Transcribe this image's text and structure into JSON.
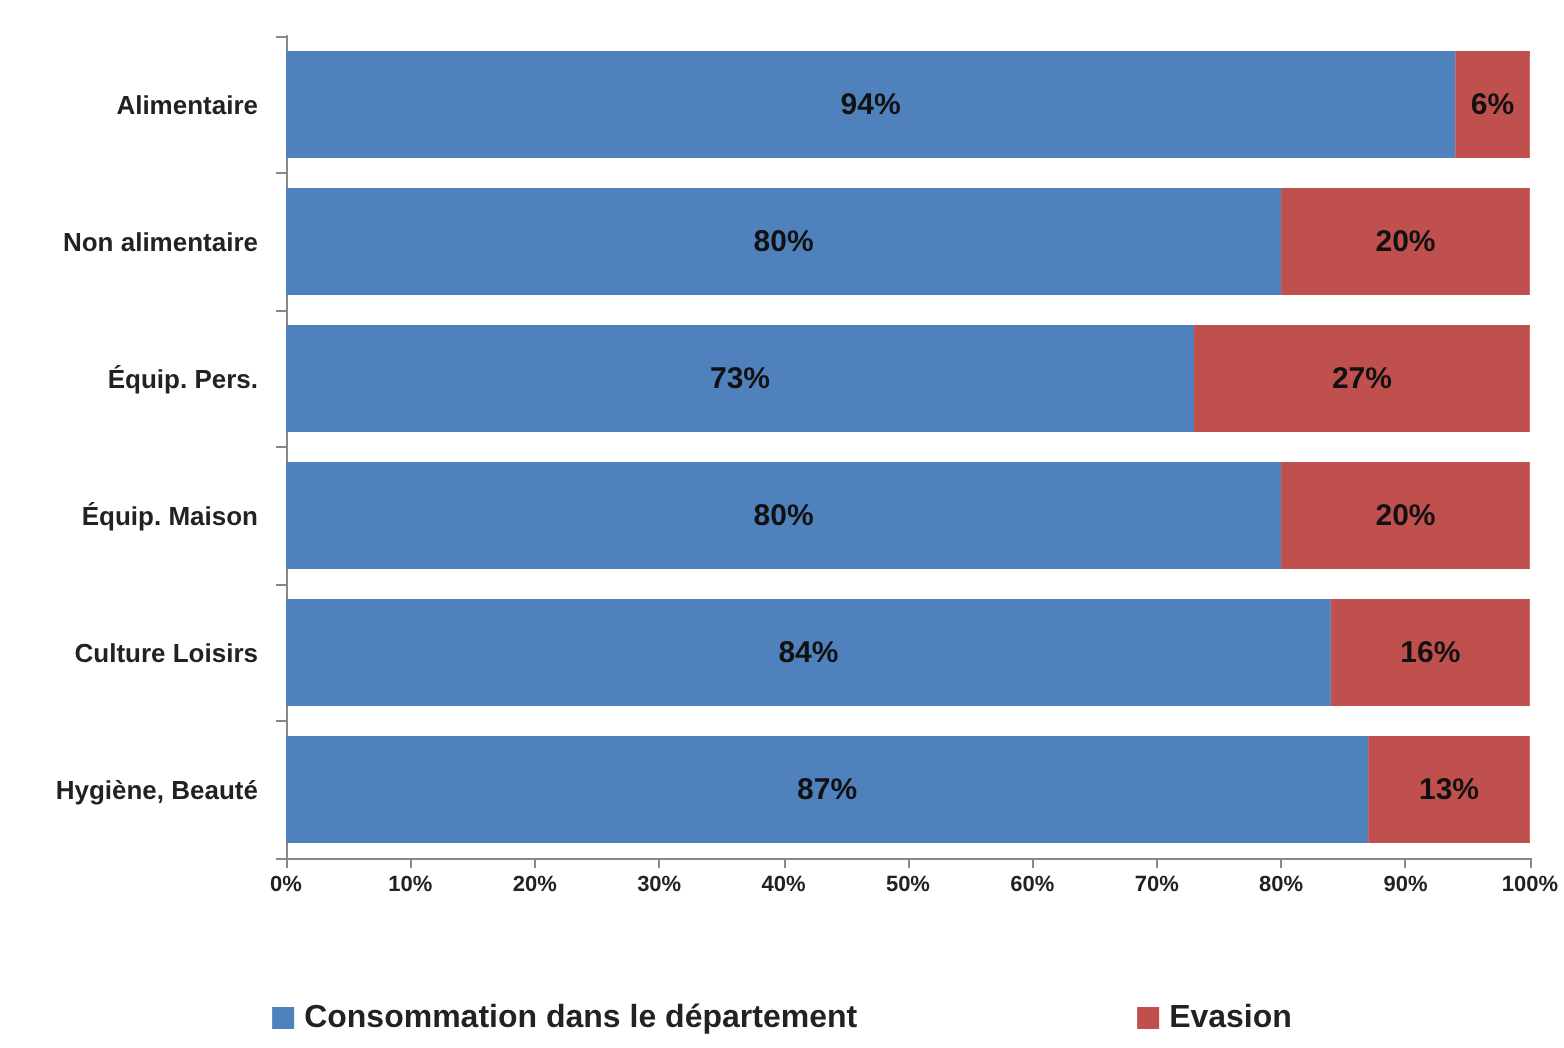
{
  "chart_data": {
    "type": "bar",
    "orientation": "horizontal",
    "stacked": true,
    "legend": "bottom",
    "grid": false,
    "categories": [
      "Alimentaire",
      "Non alimentaire",
      "Équip. Pers.",
      "Équip. Maison",
      "Culture Loisirs",
      "Hygiène, Beauté"
    ],
    "series": [
      {
        "name": "Consommation dans le département",
        "color": "#4f81bd",
        "values": [
          94,
          80,
          73,
          80,
          84,
          87
        ],
        "value_labels": [
          "94%",
          "80%",
          "73%",
          "80%",
          "84%",
          "87%"
        ]
      },
      {
        "name": "Evasion",
        "color": "#c0504d",
        "values": [
          6,
          20,
          27,
          20,
          16,
          13
        ],
        "value_labels": [
          "6%",
          "20%",
          "27%",
          "20%",
          "16%",
          "13%"
        ]
      }
    ],
    "xlim": [
      0,
      100
    ],
    "xticks": [
      {
        "value": 0,
        "label": "0%"
      },
      {
        "value": 10,
        "label": "10%"
      },
      {
        "value": 20,
        "label": "20%"
      },
      {
        "value": 30,
        "label": "30%"
      },
      {
        "value": 40,
        "label": "40%"
      },
      {
        "value": 50,
        "label": "50%"
      },
      {
        "value": 60,
        "label": "60%"
      },
      {
        "value": 70,
        "label": "70%"
      },
      {
        "value": 80,
        "label": "80%"
      },
      {
        "value": 90,
        "label": "90%"
      },
      {
        "value": 100,
        "label": "100%"
      }
    ]
  }
}
